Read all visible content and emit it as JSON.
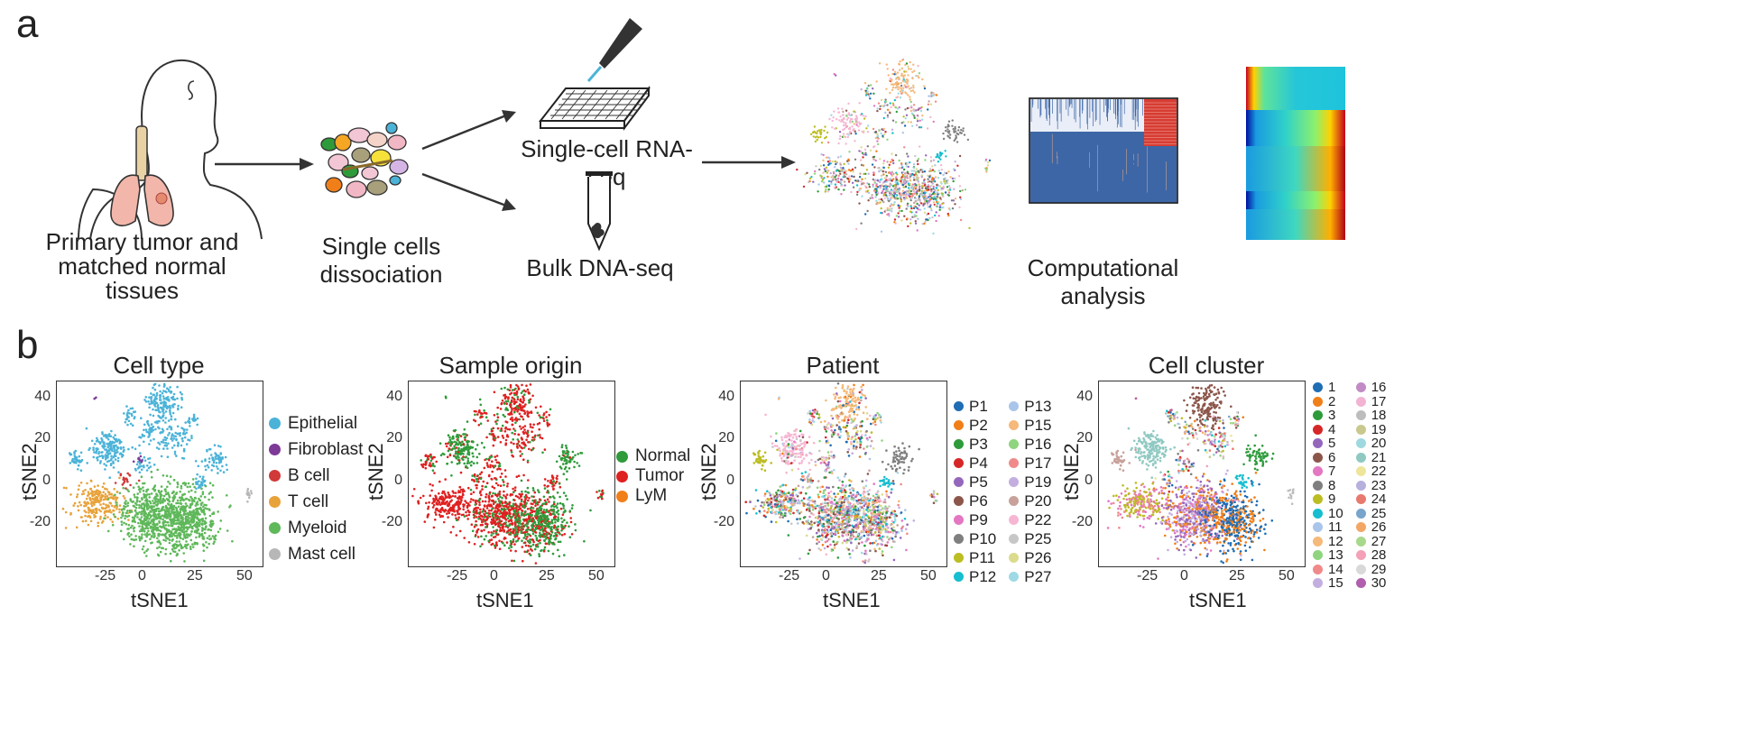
{
  "panel_a": {
    "letter": "a",
    "steps": [
      {
        "caption_line1": "Primary tumor and",
        "caption_line2": "matched normal tissues"
      },
      {
        "caption": "Single cells dissociation"
      },
      {
        "caption": "Single-cell RNA-seq"
      },
      {
        "caption": "Bulk DNA-seq"
      },
      {
        "caption": "Computational analysis"
      }
    ],
    "icons": [
      "human-lungs-icon",
      "cells-icon",
      "pipette-icon",
      "well-plate-icon",
      "tube-icon",
      "tsne-mini-icon",
      "heatmap-binary-icon",
      "heatmap-gradient-icon",
      "arrow-icon"
    ]
  },
  "panel_b": {
    "letter": "b",
    "plots": [
      {
        "title": "Cell type",
        "xlabel": "tSNE1",
        "ylabel": "tSNE2",
        "legend": [
          {
            "label": "Epithelial",
            "color": "#4bb3d8"
          },
          {
            "label": "Fibroblast",
            "color": "#7d3a96"
          },
          {
            "label": "B cell",
            "color": "#d03a38"
          },
          {
            "label": "T cell",
            "color": "#e8a23a"
          },
          {
            "label": "Myeloid",
            "color": "#5fb85a"
          },
          {
            "label": "Mast cell",
            "color": "#b7b7b7"
          }
        ]
      },
      {
        "title": "Sample origin",
        "xlabel": "tSNE1",
        "ylabel": "tSNE2",
        "legend": [
          {
            "label": "Normal",
            "color": "#2f9b3a"
          },
          {
            "label": "Tumor",
            "color": "#df2020"
          },
          {
            "label": "LyM",
            "color": "#f07f19"
          }
        ]
      },
      {
        "title": "Patient",
        "xlabel": "tSNE1",
        "ylabel": "tSNE2",
        "legend": [
          {
            "label": "P1",
            "color": "#1f6db4"
          },
          {
            "label": "P13",
            "color": "#a9c5ea"
          },
          {
            "label": "P2",
            "color": "#f07f19"
          },
          {
            "label": "P15",
            "color": "#f5b97a"
          },
          {
            "label": "P3",
            "color": "#2e9b3a"
          },
          {
            "label": "P16",
            "color": "#8fd47f"
          },
          {
            "label": "P4",
            "color": "#d62728"
          },
          {
            "label": "P17",
            "color": "#f08a8a"
          },
          {
            "label": "P5",
            "color": "#9467bd"
          },
          {
            "label": "P19",
            "color": "#c3aee0"
          },
          {
            "label": "P6",
            "color": "#8c564b"
          },
          {
            "label": "P20",
            "color": "#c7a19a"
          },
          {
            "label": "P9",
            "color": "#e377c2"
          },
          {
            "label": "P22",
            "color": "#f6b6d2"
          },
          {
            "label": "P10",
            "color": "#7f7f7f"
          },
          {
            "label": "P25",
            "color": "#c7c7c7"
          },
          {
            "label": "P11",
            "color": "#bcbd22"
          },
          {
            "label": "P26",
            "color": "#dbdb8d"
          },
          {
            "label": "P12",
            "color": "#17becf"
          },
          {
            "label": "P27",
            "color": "#9edae5"
          }
        ]
      },
      {
        "title": "Cell cluster",
        "xlabel": "tSNE1",
        "ylabel": "tSNE2",
        "legend": [
          {
            "label": "1",
            "color": "#1f6db4"
          },
          {
            "label": "16",
            "color": "#c28bc6"
          },
          {
            "label": "2",
            "color": "#f07f19"
          },
          {
            "label": "17",
            "color": "#f2b4d2"
          },
          {
            "label": "3",
            "color": "#2e9b3a"
          },
          {
            "label": "18",
            "color": "#bdbdbd"
          },
          {
            "label": "4",
            "color": "#d62728"
          },
          {
            "label": "19",
            "color": "#c9c98e"
          },
          {
            "label": "5",
            "color": "#9467bd"
          },
          {
            "label": "20",
            "color": "#9ed9df"
          },
          {
            "label": "6",
            "color": "#8c564b"
          },
          {
            "label": "21",
            "color": "#8fc9c2"
          },
          {
            "label": "7",
            "color": "#e377c2"
          },
          {
            "label": "22",
            "color": "#efe59a"
          },
          {
            "label": "8",
            "color": "#7f7f7f"
          },
          {
            "label": "23",
            "color": "#b5b0dc"
          },
          {
            "label": "9",
            "color": "#bcbd22"
          },
          {
            "label": "24",
            "color": "#e8796e"
          },
          {
            "label": "10",
            "color": "#17becf"
          },
          {
            "label": "25",
            "color": "#79a4cc"
          },
          {
            "label": "11",
            "color": "#a9c5ea"
          },
          {
            "label": "26",
            "color": "#f3a765"
          },
          {
            "label": "12",
            "color": "#f5b97a"
          },
          {
            "label": "27",
            "color": "#a8d88b"
          },
          {
            "label": "13",
            "color": "#8fd47f"
          },
          {
            "label": "28",
            "color": "#f3a0b8"
          },
          {
            "label": "14",
            "color": "#f08a8a"
          },
          {
            "label": "29",
            "color": "#d9d9d9"
          },
          {
            "label": "15",
            "color": "#c3aee0"
          },
          {
            "label": "30",
            "color": "#b05fae"
          }
        ]
      }
    ],
    "xticks": [
      "-25",
      "0",
      "25",
      "50"
    ],
    "yticks": [
      "40",
      "20",
      "0",
      "-20"
    ]
  }
}
